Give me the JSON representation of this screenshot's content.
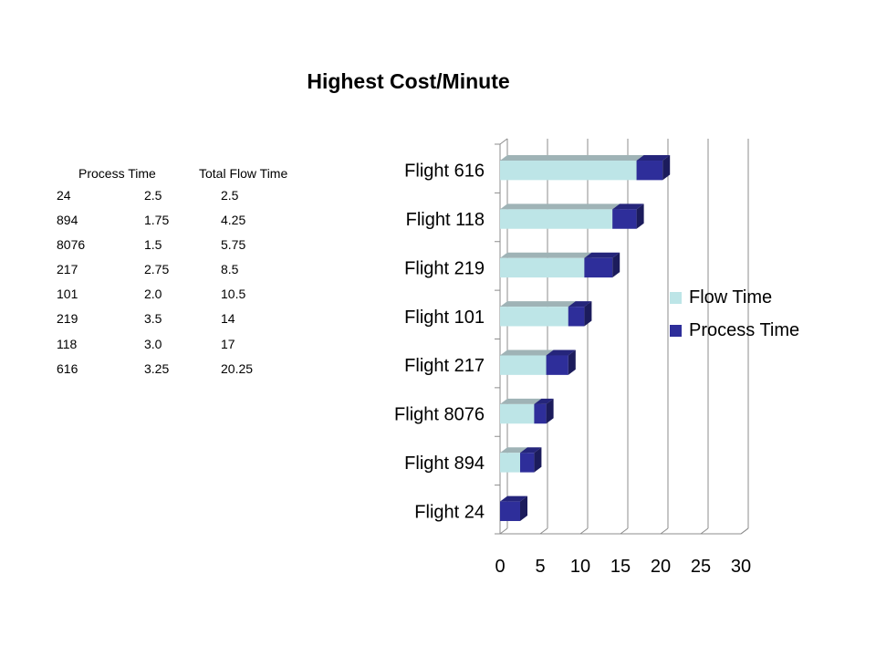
{
  "title": "Highest Cost/Minute",
  "table": {
    "headers": [
      "",
      "Process Time",
      "Total Flow Time"
    ],
    "rows": [
      [
        "24",
        "2.5",
        "2.5"
      ],
      [
        "894",
        "1.75",
        "4.25"
      ],
      [
        "8076",
        "1.5",
        "5.75"
      ],
      [
        "217",
        "2.75",
        "8.5"
      ],
      [
        "101",
        "2.0",
        "10.5"
      ],
      [
        "219",
        "3.5",
        "14"
      ],
      [
        "118",
        "3.0",
        "17"
      ],
      [
        "616",
        "3.25",
        "20.25"
      ]
    ]
  },
  "chart_data": {
    "type": "bar",
    "orientation": "horizontal",
    "stacked": true,
    "style": "3d",
    "categories": [
      "Flight 24",
      "Flight 894",
      "Flight 8076",
      "Flight 217",
      "Flight 101",
      "Flight 219",
      "Flight 118",
      "Flight 616"
    ],
    "series": [
      {
        "name": "Flow Time",
        "values": [
          0,
          2.5,
          4.25,
          5.75,
          8.5,
          10.5,
          14,
          17
        ],
        "color": "#bde5e7"
      },
      {
        "name": "Process Time",
        "values": [
          2.5,
          1.75,
          1.5,
          2.75,
          2.0,
          3.5,
          3.0,
          3.25
        ],
        "color": "#2e2e9a"
      }
    ],
    "xlim": [
      0,
      30
    ],
    "xticks": [
      "0",
      "5",
      "10",
      "15",
      "20",
      "25",
      "30"
    ],
    "grid": true,
    "legend_position": "right"
  }
}
